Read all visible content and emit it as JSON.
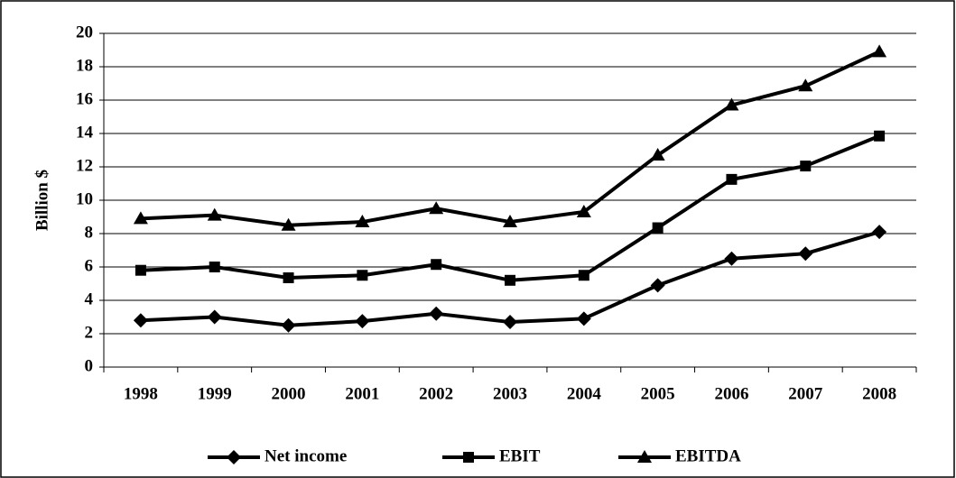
{
  "chart_data": {
    "type": "line",
    "y_label": "Billion $",
    "categories": [
      "1998",
      "1999",
      "2000",
      "2001",
      "2002",
      "2003",
      "2004",
      "2005",
      "2006",
      "2007",
      "2008"
    ],
    "series": [
      {
        "name": "Net income",
        "color": "#000000",
        "marker": "diamond",
        "values": [
          2.8,
          3.0,
          2.5,
          2.75,
          3.2,
          2.7,
          2.9,
          4.9,
          6.5,
          6.8,
          8.1
        ]
      },
      {
        "name": "EBIT",
        "color": "#000000",
        "marker": "square",
        "values": [
          5.8,
          6.0,
          5.35,
          5.5,
          6.15,
          5.2,
          5.5,
          8.35,
          11.25,
          12.05,
          13.85
        ]
      },
      {
        "name": "EBITDA",
        "color": "#000000",
        "marker": "triangle",
        "values": [
          8.9,
          9.1,
          8.5,
          8.7,
          9.5,
          8.7,
          9.3,
          12.7,
          15.7,
          16.85,
          18.9
        ]
      }
    ],
    "ylim": [
      0,
      20
    ],
    "yticks": [
      0,
      2,
      4,
      6,
      8,
      10,
      12,
      14,
      16,
      18,
      20
    ],
    "grid": true,
    "legend": "bottom"
  }
}
